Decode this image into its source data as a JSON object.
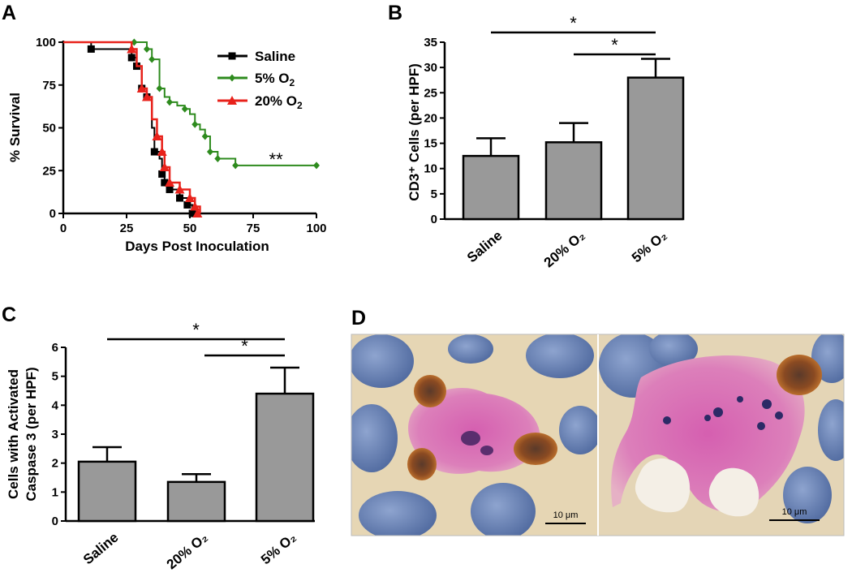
{
  "panels": {
    "a": "A",
    "b": "B",
    "c": "C",
    "d": "D"
  },
  "chart_data": [
    {
      "id": "A",
      "type": "line",
      "subtype": "kaplan-meier",
      "title": "",
      "xlabel": "Days Post Inoculation",
      "ylabel": "% Survival",
      "xlim": [
        0,
        100
      ],
      "ylim": [
        0,
        100
      ],
      "xticks": [
        "0",
        "25",
        "50",
        "75",
        "100"
      ],
      "yticks": [
        "0",
        "25",
        "50",
        "75",
        "100"
      ],
      "legend_position": "top-right",
      "annotations": [
        {
          "text": "**",
          "x": 84,
          "y": 28
        }
      ],
      "series": [
        {
          "name": "Saline",
          "legend": {
            "main": "Saline",
            "sub": ""
          },
          "color": "#000000",
          "marker": "square",
          "x": [
            0,
            11,
            27,
            29,
            31,
            33,
            35,
            36,
            38,
            39,
            40,
            42,
            44,
            46,
            49,
            51,
            53
          ],
          "y": [
            100,
            96,
            91,
            86,
            73,
            68,
            50,
            36,
            32,
            23,
            18,
            14,
            14,
            9,
            5,
            0,
            0
          ],
          "censored": [
            [
              11,
              96
            ],
            [
              27,
              91
            ],
            [
              29,
              86
            ],
            [
              31,
              73
            ],
            [
              33,
              68
            ],
            [
              36,
              36
            ],
            [
              39,
              23
            ],
            [
              40,
              18
            ],
            [
              42,
              14
            ],
            [
              46,
              9
            ],
            [
              49,
              5
            ],
            [
              51,
              0
            ]
          ]
        },
        {
          "name": "5% O2",
          "legend": {
            "main": "5% O",
            "sub": "2"
          },
          "color": "#2e8b1e",
          "marker": "diamond",
          "x": [
            0,
            28,
            33,
            35,
            38,
            40,
            42,
            45,
            48,
            50,
            52,
            54,
            56,
            58,
            61,
            68,
            100
          ],
          "y": [
            100,
            100,
            96,
            90,
            73,
            68,
            65,
            63,
            61,
            58,
            52,
            49,
            45,
            36,
            32,
            28,
            28
          ],
          "censored": [
            [
              28,
              100
            ],
            [
              33,
              96
            ],
            [
              35,
              90
            ],
            [
              38,
              73
            ],
            [
              42,
              65
            ],
            [
              48,
              61
            ],
            [
              52,
              52
            ],
            [
              56,
              45
            ],
            [
              58,
              36
            ],
            [
              61,
              32
            ],
            [
              68,
              28
            ],
            [
              100,
              28
            ]
          ]
        },
        {
          "name": "20% O2",
          "legend": {
            "main": "20% O",
            "sub": "2"
          },
          "color": "#e8221b",
          "marker": "triangle",
          "x": [
            0,
            27,
            29,
            31,
            33,
            35,
            37,
            39,
            40,
            42,
            46,
            50,
            52,
            54
          ],
          "y": [
            100,
            96,
            86,
            73,
            68,
            55,
            45,
            36,
            27,
            18,
            14,
            9,
            4,
            0
          ],
          "censored": [
            [
              27,
              96
            ],
            [
              31,
              73
            ],
            [
              33,
              68
            ],
            [
              37,
              45
            ],
            [
              39,
              36
            ],
            [
              40,
              27
            ],
            [
              42,
              18
            ],
            [
              46,
              14
            ],
            [
              50,
              9
            ],
            [
              52,
              4
            ],
            [
              53,
              0
            ]
          ]
        }
      ]
    },
    {
      "id": "B",
      "type": "bar",
      "title": "",
      "xlabel": "",
      "ylabel": "CD3⁺ Cells (per HPF)",
      "categories": [
        "Saline",
        "20% O₂",
        "5% O₂"
      ],
      "values": [
        12.5,
        15.2,
        28
      ],
      "errors": [
        3.5,
        3.8,
        3.7
      ],
      "ylim": [
        0,
        35
      ],
      "yticks": [
        "0",
        "5",
        "10",
        "15",
        "20",
        "25",
        "30",
        "35"
      ],
      "bar_color": "#999999",
      "significance": [
        {
          "from": "Saline",
          "to": "5% O₂",
          "label": "*"
        },
        {
          "from": "20% O₂",
          "to": "5% O₂",
          "label": "*"
        }
      ]
    },
    {
      "id": "C",
      "type": "bar",
      "title": "",
      "xlabel": "",
      "ylabel_lines": [
        "Cells with Activated",
        "Caspase 3 (per HPF)"
      ],
      "categories": [
        "Saline",
        "20% O₂",
        "5% O₂"
      ],
      "values": [
        2.05,
        1.35,
        4.4
      ],
      "errors": [
        0.5,
        0.27,
        0.9
      ],
      "ylim": [
        0,
        6
      ],
      "yticks": [
        "0",
        "1",
        "2",
        "3",
        "4",
        "5",
        "6"
      ],
      "bar_color": "#999999",
      "significance": [
        {
          "from": "Saline",
          "to": "5% O₂",
          "label": "*"
        },
        {
          "from": "20% O₂",
          "to": "5% O₂",
          "label": "*"
        }
      ]
    }
  ],
  "panel_d": {
    "scalebar_left": "10 μm",
    "scalebar_right": "10 μm"
  }
}
